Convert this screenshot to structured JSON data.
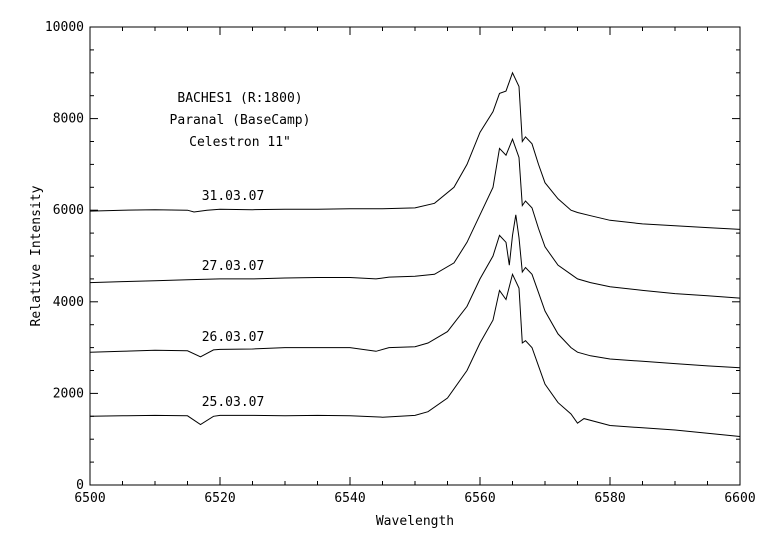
{
  "chart_data": {
    "type": "line",
    "title": "",
    "xlabel": "Wavelength",
    "ylabel": "Relative Intensity",
    "xlim": [
      6500,
      6600
    ],
    "ylim": [
      0,
      10000
    ],
    "x_ticks": [
      6500,
      6520,
      6540,
      6560,
      6580,
      6600
    ],
    "y_ticks": [
      0,
      2000,
      4000,
      6000,
      8000,
      10000
    ],
    "grid": false,
    "annotations": [
      "BACHES1 (R:1800)",
      "Paranal (BaseCamp)",
      "Celestron 11\""
    ],
    "series": [
      {
        "name": "31.03.07",
        "points": [
          [
            6500,
            5980
          ],
          [
            6505,
            6000
          ],
          [
            6510,
            6010
          ],
          [
            6515,
            6000
          ],
          [
            6516,
            5960
          ],
          [
            6518,
            6000
          ],
          [
            6520,
            6020
          ],
          [
            6525,
            6010
          ],
          [
            6530,
            6020
          ],
          [
            6535,
            6020
          ],
          [
            6540,
            6030
          ],
          [
            6545,
            6030
          ],
          [
            6550,
            6050
          ],
          [
            6553,
            6150
          ],
          [
            6556,
            6500
          ],
          [
            6558,
            7000
          ],
          [
            6560,
            7700
          ],
          [
            6562,
            8150
          ],
          [
            6563,
            8550
          ],
          [
            6564,
            8600
          ],
          [
            6565,
            9000
          ],
          [
            6566,
            8700
          ],
          [
            6566.5,
            7500
          ],
          [
            6567,
            7600
          ],
          [
            6568,
            7450
          ],
          [
            6569,
            7000
          ],
          [
            6570,
            6600
          ],
          [
            6572,
            6250
          ],
          [
            6574,
            6000
          ],
          [
            6575,
            5950
          ],
          [
            6577,
            5880
          ],
          [
            6580,
            5780
          ],
          [
            6585,
            5700
          ],
          [
            6590,
            5660
          ],
          [
            6595,
            5620
          ],
          [
            6600,
            5580
          ]
        ]
      },
      {
        "name": "27.03.07",
        "points": [
          [
            6500,
            4420
          ],
          [
            6505,
            4440
          ],
          [
            6510,
            4460
          ],
          [
            6515,
            4480
          ],
          [
            6520,
            4500
          ],
          [
            6525,
            4500
          ],
          [
            6530,
            4520
          ],
          [
            6535,
            4530
          ],
          [
            6540,
            4530
          ],
          [
            6544,
            4500
          ],
          [
            6546,
            4540
          ],
          [
            6550,
            4560
          ],
          [
            6553,
            4600
          ],
          [
            6556,
            4850
          ],
          [
            6558,
            5300
          ],
          [
            6560,
            5900
          ],
          [
            6562,
            6500
          ],
          [
            6563,
            7350
          ],
          [
            6564,
            7200
          ],
          [
            6565,
            7550
          ],
          [
            6566,
            7150
          ],
          [
            6566.5,
            6100
          ],
          [
            6567,
            6200
          ],
          [
            6568,
            6050
          ],
          [
            6569,
            5600
          ],
          [
            6570,
            5200
          ],
          [
            6572,
            4800
          ],
          [
            6574,
            4600
          ],
          [
            6575,
            4500
          ],
          [
            6577,
            4420
          ],
          [
            6580,
            4330
          ],
          [
            6585,
            4250
          ],
          [
            6590,
            4180
          ],
          [
            6595,
            4130
          ],
          [
            6600,
            4080
          ]
        ]
      },
      {
        "name": "26.03.07",
        "points": [
          [
            6500,
            2900
          ],
          [
            6505,
            2920
          ],
          [
            6510,
            2940
          ],
          [
            6515,
            2930
          ],
          [
            6517,
            2800
          ],
          [
            6519,
            2950
          ],
          [
            6520,
            2960
          ],
          [
            6525,
            2970
          ],
          [
            6530,
            3000
          ],
          [
            6535,
            3000
          ],
          [
            6540,
            3000
          ],
          [
            6544,
            2920
          ],
          [
            6546,
            3000
          ],
          [
            6550,
            3020
          ],
          [
            6552,
            3100
          ],
          [
            6555,
            3350
          ],
          [
            6558,
            3900
          ],
          [
            6560,
            4500
          ],
          [
            6562,
            5000
          ],
          [
            6563,
            5450
          ],
          [
            6564,
            5300
          ],
          [
            6564.5,
            4800
          ],
          [
            6565,
            5450
          ],
          [
            6565.5,
            5900
          ],
          [
            6566,
            5400
          ],
          [
            6566.5,
            4650
          ],
          [
            6567,
            4750
          ],
          [
            6568,
            4600
          ],
          [
            6569,
            4200
          ],
          [
            6570,
            3800
          ],
          [
            6572,
            3300
          ],
          [
            6574,
            3000
          ],
          [
            6575,
            2900
          ],
          [
            6577,
            2820
          ],
          [
            6580,
            2750
          ],
          [
            6585,
            2700
          ],
          [
            6590,
            2650
          ],
          [
            6595,
            2600
          ],
          [
            6600,
            2560
          ]
        ]
      },
      {
        "name": "25.03.07",
        "points": [
          [
            6500,
            1500
          ],
          [
            6505,
            1510
          ],
          [
            6510,
            1520
          ],
          [
            6515,
            1510
          ],
          [
            6517,
            1320
          ],
          [
            6519,
            1500
          ],
          [
            6520,
            1520
          ],
          [
            6525,
            1520
          ],
          [
            6530,
            1510
          ],
          [
            6535,
            1520
          ],
          [
            6540,
            1510
          ],
          [
            6545,
            1480
          ],
          [
            6550,
            1520
          ],
          [
            6552,
            1600
          ],
          [
            6555,
            1900
          ],
          [
            6558,
            2500
          ],
          [
            6560,
            3100
          ],
          [
            6562,
            3600
          ],
          [
            6563,
            4250
          ],
          [
            6564,
            4050
          ],
          [
            6565,
            4600
          ],
          [
            6566,
            4300
          ],
          [
            6566.5,
            3100
          ],
          [
            6567,
            3150
          ],
          [
            6568,
            3000
          ],
          [
            6569,
            2600
          ],
          [
            6570,
            2200
          ],
          [
            6572,
            1800
          ],
          [
            6574,
            1550
          ],
          [
            6575,
            1350
          ],
          [
            6576,
            1450
          ],
          [
            6580,
            1300
          ],
          [
            6585,
            1250
          ],
          [
            6590,
            1200
          ],
          [
            6595,
            1130
          ],
          [
            6600,
            1060
          ]
        ]
      }
    ]
  }
}
